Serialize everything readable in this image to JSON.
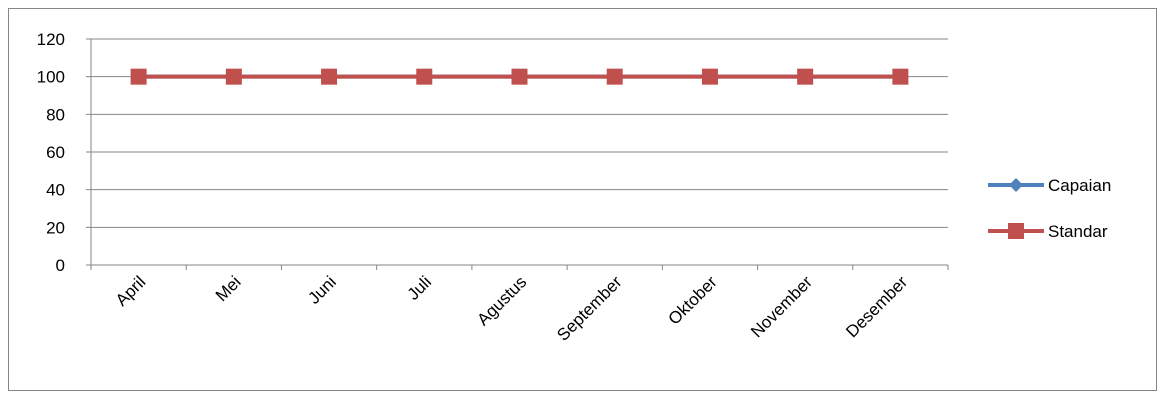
{
  "chart_data": {
    "type": "line",
    "categories": [
      "April",
      "Mei",
      "Juni",
      "Juli",
      "Agustus",
      "September",
      "Oktober",
      "November",
      "Desember"
    ],
    "series": [
      {
        "name": "Capaian",
        "color": "#4f81bd",
        "marker": "diamond",
        "values": [
          100,
          100,
          100,
          100,
          100,
          100,
          100,
          100,
          100
        ]
      },
      {
        "name": "Standar",
        "color": "#c0504d",
        "marker": "square",
        "values": [
          100,
          100,
          100,
          100,
          100,
          100,
          100,
          100,
          100
        ]
      }
    ],
    "yticks": [
      0,
      20,
      40,
      60,
      80,
      100,
      120
    ],
    "ylim": [
      0,
      120
    ],
    "grid": true,
    "legend_position": "right"
  }
}
